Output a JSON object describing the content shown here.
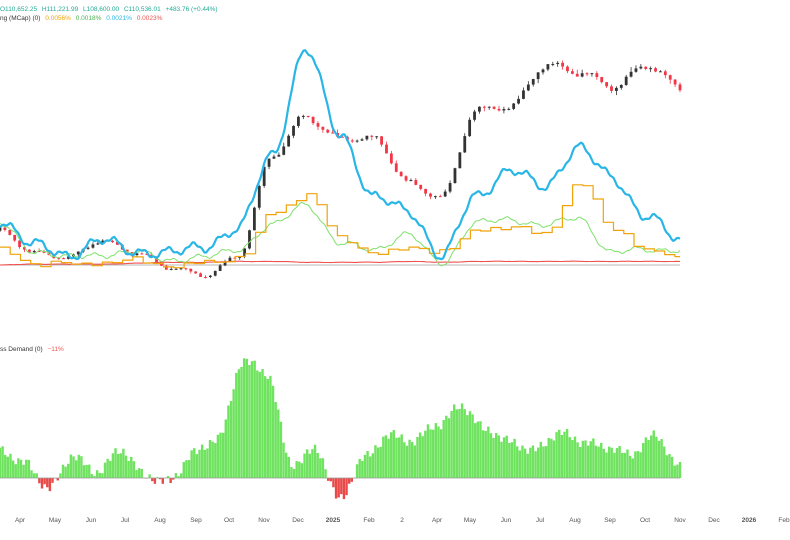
{
  "header": {
    "ohlc": {
      "o": "O110,652.25",
      "h": "H111,221.99",
      "l": "L108,600.00",
      "c": "C110,536.01",
      "change": "+483.76 (+0.44%)"
    },
    "funding_label": "ng (MCap) (0)",
    "funding_values": [
      "0.0056%",
      "0.0018%",
      "0.0021%",
      "0.0023%"
    ],
    "demand_label": "ss Demand (0)",
    "demand_value": "−11%"
  },
  "colors": {
    "up": "#22ab94",
    "down": "#f23645",
    "candle": "#333333",
    "blue": "#29b6e6",
    "orange": "#f0a30a",
    "green": "#7ee06b",
    "red": "#ef5350",
    "pos_hist": "#6fe35f",
    "neg_hist": "#e84a4a",
    "grey_line": "#b9b9b9"
  },
  "x_axis": {
    "labels": [
      "Apr",
      "May",
      "Jun",
      "Jul",
      "Aug",
      "Sep",
      "Oct",
      "Nov",
      "Dec",
      "2025",
      "Feb",
      "2",
      "Apr",
      "May",
      "Jun",
      "Jul",
      "Aug",
      "Sep",
      "Oct",
      "Nov",
      "Dec",
      "2026",
      "Feb"
    ]
  },
  "chart_data": [
    {
      "type": "line",
      "description_series": "upper pane",
      "x_months": [
        "2024-03",
        "2024-04",
        "2024-05",
        "2024-06",
        "2024-07",
        "2024-08",
        "2024-09",
        "2024-10",
        "2024-11",
        "2024-12",
        "2025-01",
        "2025-02",
        "2025-03",
        "2025-04",
        "2025-05",
        "2025-06",
        "2025-07",
        "2025-08",
        "2025-09",
        "2025-10",
        "2025-11"
      ],
      "series": [
        {
          "name": "price",
          "style": "candles",
          "values": [
            70000,
            64000,
            62000,
            67000,
            64000,
            59000,
            57000,
            63000,
            91000,
            103000,
            97000,
            96000,
            84000,
            80000,
            104000,
            106000,
            118000,
            115000,
            112000,
            118000,
            110500
          ]
        },
        {
          "name": "0.0018%",
          "color_key": "blue",
          "values": [
            72,
            43,
            34,
            48,
            38,
            34,
            44,
            60,
            145,
            258,
            168,
            95,
            84,
            30,
            100,
            125,
            110,
            150,
            120,
            75,
            50
          ]
        },
        {
          "name": "0.0056%",
          "color_key": "orange",
          "values": [
            40,
            22,
            24,
            24,
            28,
            20,
            25,
            30,
            80,
            100,
            50,
            35,
            40,
            38,
            60,
            65,
            55,
            115,
            60,
            40,
            28
          ]
        },
        {
          "name": "0.0021%",
          "color_key": "green",
          "values": [
            67,
            38,
            30,
            34,
            36,
            28,
            30,
            40,
            65,
            90,
            45,
            40,
            55,
            25,
            68,
            73,
            65,
            75,
            35,
            40,
            38
          ]
        },
        {
          "name": "0.0023%",
          "color_key": "red",
          "values": [
            22,
            23,
            23,
            23,
            24,
            25,
            25,
            26,
            26,
            25,
            25,
            25,
            26,
            25,
            26,
            26,
            26,
            26,
            26,
            26,
            26
          ]
        }
      ]
    },
    {
      "type": "bar",
      "description_series": "lower pane",
      "values_percent": [
        10,
        5,
        -4,
        8,
        2,
        9,
        1,
        -1,
        8,
        14,
        40,
        35,
        5,
        10,
        -8,
        7,
        15,
        12,
        18,
        25,
        16,
        12,
        10,
        15,
        12,
        11,
        8,
        14,
        4
      ]
    }
  ]
}
